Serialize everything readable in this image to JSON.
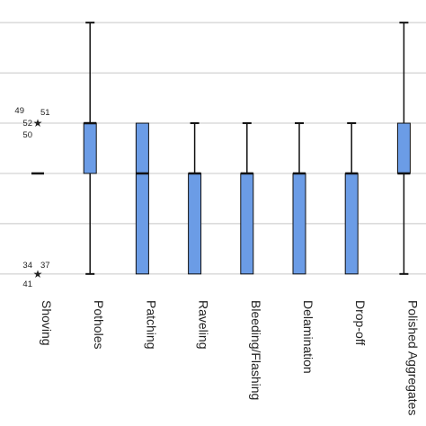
{
  "chart_data": {
    "type": "boxplot",
    "title": "",
    "xlabel": "",
    "ylabel": "",
    "grid": true,
    "grid_levels": [
      0,
      1,
      2,
      3,
      4,
      5,
      6
    ],
    "ylim": [
      0.55,
      6.45
    ],
    "categories": [
      "Shoving",
      "Potholes",
      "Patching",
      "Raveling",
      "Bleeding/Flashing",
      "Delamination",
      "Drop-off",
      "Polished Aggregates"
    ],
    "boxes": [
      {
        "category": "Shoving",
        "whisker_low": 3,
        "q1": 3,
        "median": 3,
        "q3": 3,
        "whisker_high": 3
      },
      {
        "category": "Potholes",
        "whisker_low": 1,
        "q1": 3,
        "median": 4,
        "q3": 4,
        "whisker_high": 6
      },
      {
        "category": "Patching",
        "whisker_low": 1,
        "q1": 1,
        "median": 3,
        "q3": 4,
        "whisker_high": 4
      },
      {
        "category": "Raveling",
        "whisker_low": 1,
        "q1": 1,
        "median": 3,
        "q3": 3,
        "whisker_high": 4
      },
      {
        "category": "Bleeding/Flashing",
        "whisker_low": 1,
        "q1": 1,
        "median": 3,
        "q3": 3,
        "whisker_high": 4
      },
      {
        "category": "Delamination",
        "whisker_low": 1,
        "q1": 1,
        "median": 3,
        "q3": 3,
        "whisker_high": 4
      },
      {
        "category": "Drop-off",
        "whisker_low": 1,
        "q1": 1,
        "median": 3,
        "q3": 3,
        "whisker_high": 4
      },
      {
        "category": "Polished Aggregates",
        "whisker_low": 1,
        "q1": 3,
        "median": 3,
        "q3": 4,
        "whisker_high": 6
      }
    ],
    "outliers": [
      {
        "category": "Shoving",
        "value": 4,
        "labels": [
          "49",
          "51",
          "52",
          "50"
        ]
      },
      {
        "category": "Shoving",
        "value": 1,
        "labels": [
          "34",
          "37",
          "41"
        ]
      }
    ],
    "box_color": "#6b9ce6",
    "box_edge_color": "#111111"
  }
}
